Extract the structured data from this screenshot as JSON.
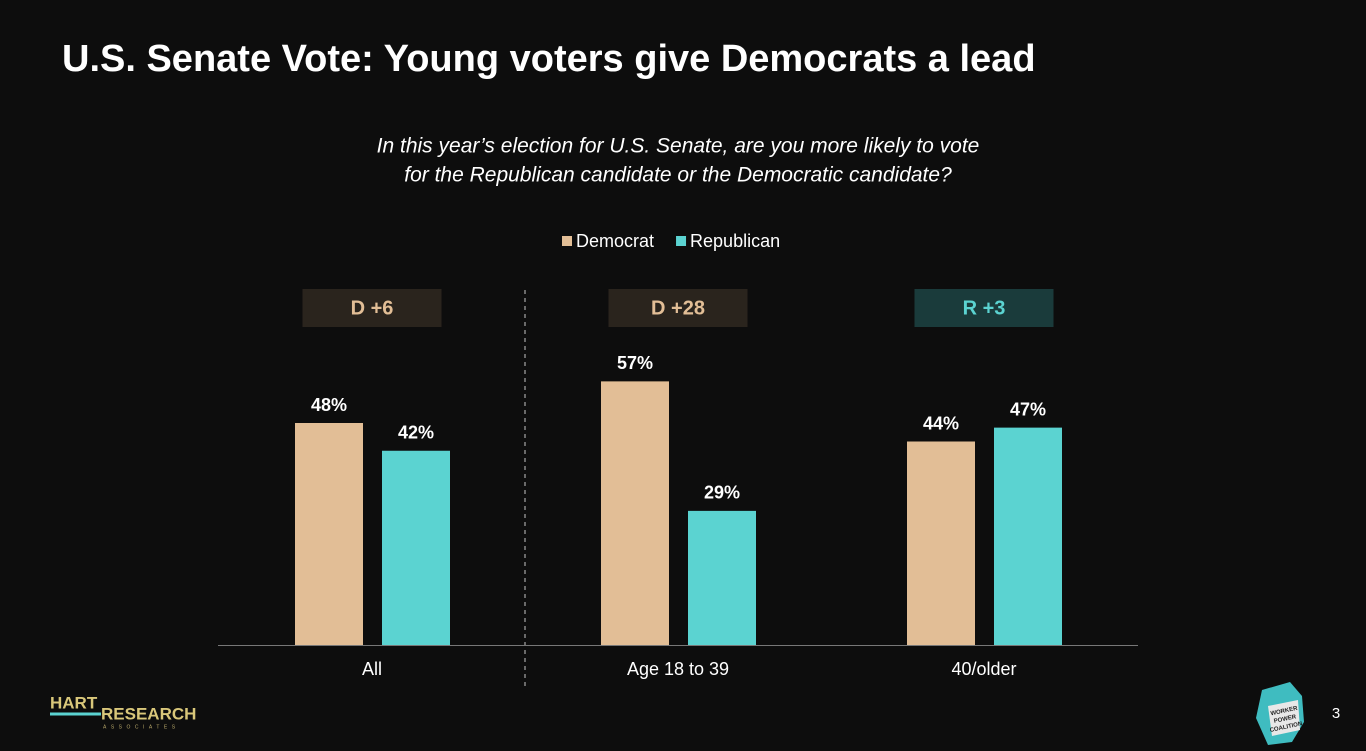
{
  "chart_data": {
    "type": "bar",
    "title": "U.S. Senate Vote:  Young voters give Democrats a lead",
    "subtitle": [
      "In this year’s election for U.S. Senate, are you more likely to vote",
      "for the Republican candidate or the Democratic candidate?"
    ],
    "categories": [
      "All",
      "Age 18 to 39",
      "40/older"
    ],
    "series": [
      {
        "name": "Democrat",
        "color": "#e2be96",
        "values": [
          48,
          57,
          44
        ],
        "value_labels": [
          "48%",
          "57%",
          "44%"
        ]
      },
      {
        "name": "Republican",
        "color": "#5bd3d1",
        "values": [
          42,
          29,
          47
        ],
        "value_labels": [
          "42%",
          "29%",
          "47%"
        ]
      }
    ],
    "leads": [
      "D +6",
      "D +28",
      "R +3"
    ],
    "legend": "top"
  },
  "footer": {
    "logo": [
      "HART",
      "RESEARCH",
      "ASSOCIATES"
    ],
    "badge": [
      "WORKER",
      "POWER",
      "COALITION"
    ],
    "page_number": "3"
  }
}
